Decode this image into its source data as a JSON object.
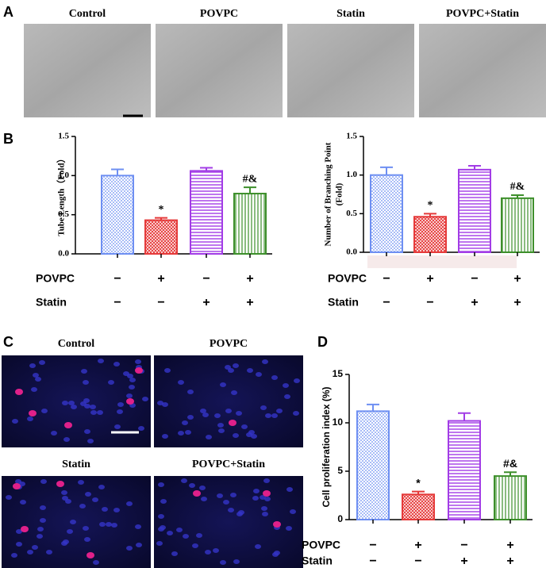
{
  "panels": {
    "A": "A",
    "B": "B",
    "C": "C",
    "D": "D"
  },
  "images_a": [
    "Control",
    "POVPC",
    "Statin",
    "POVPC+Statin"
  ],
  "images_c": [
    "Control",
    "POVPC",
    "Statin",
    "POVPC+Statin"
  ],
  "chart_data": [
    {
      "type": "bar",
      "y_label": "Tube Length（Fold）",
      "values": [
        1.0,
        0.43,
        1.06,
        0.77
      ],
      "errors": [
        0.08,
        0.03,
        0.04,
        0.08
      ],
      "annotations": [
        null,
        "*",
        null,
        "#&"
      ],
      "colors": [
        "#6e8ff2",
        "#e53a3a",
        "#a23ce6",
        "#3d8f2b"
      ],
      "ylim": [
        0,
        1.5
      ],
      "yticks": [
        {
          "value": 0,
          "label": "0.0"
        },
        {
          "value": 0.5,
          "label": "0.5"
        },
        {
          "value": 1,
          "label": "1.0"
        },
        {
          "value": 1.5,
          "label": "1.5"
        }
      ],
      "treatments": [
        {
          "label": "POVPC",
          "signs": [
            "−",
            "+",
            "−",
            "+"
          ]
        },
        {
          "label": "Statin",
          "signs": [
            "−",
            "−",
            "+",
            "+"
          ]
        }
      ]
    },
    {
      "type": "bar",
      "y_label": "Number of Branching Point",
      "y_label_2": "(Fold)",
      "values": [
        1.0,
        0.46,
        1.07,
        0.7
      ],
      "errors": [
        0.1,
        0.04,
        0.05,
        0.04
      ],
      "annotations": [
        null,
        "*",
        null,
        "#&"
      ],
      "colors": [
        "#6e8ff2",
        "#e53a3a",
        "#a23ce6",
        "#3d8f2b"
      ],
      "ylim": [
        0,
        1.5
      ],
      "yticks": [
        {
          "value": 0,
          "label": "0.0"
        },
        {
          "value": 0.5,
          "label": "0.5"
        },
        {
          "value": 1,
          "label": "1.0"
        },
        {
          "value": 1.5,
          "label": "1.5"
        }
      ],
      "treatments": [
        {
          "label": "POVPC",
          "signs": [
            "−",
            "+",
            "−",
            "+"
          ]
        },
        {
          "label": "Statin",
          "signs": [
            "−",
            "−",
            "+",
            "+"
          ]
        }
      ]
    },
    {
      "type": "bar",
      "y_label": "Cell proliferation index (%)",
      "values": [
        11.2,
        2.6,
        10.2,
        4.5
      ],
      "errors": [
        0.7,
        0.3,
        0.8,
        0.4
      ],
      "annotations": [
        null,
        "*",
        null,
        "#&"
      ],
      "colors": [
        "#6e8ff2",
        "#e53a3a",
        "#a23ce6",
        "#3d8f2b"
      ],
      "ylim": [
        0,
        15
      ],
      "yticks": [
        0,
        5,
        10,
        15
      ],
      "treatments": [
        {
          "label": "POVPC",
          "signs": [
            "−",
            "+",
            "−",
            "+"
          ]
        },
        {
          "label": "Statin",
          "signs": [
            "−",
            "−",
            "+",
            "+"
          ]
        }
      ]
    }
  ]
}
